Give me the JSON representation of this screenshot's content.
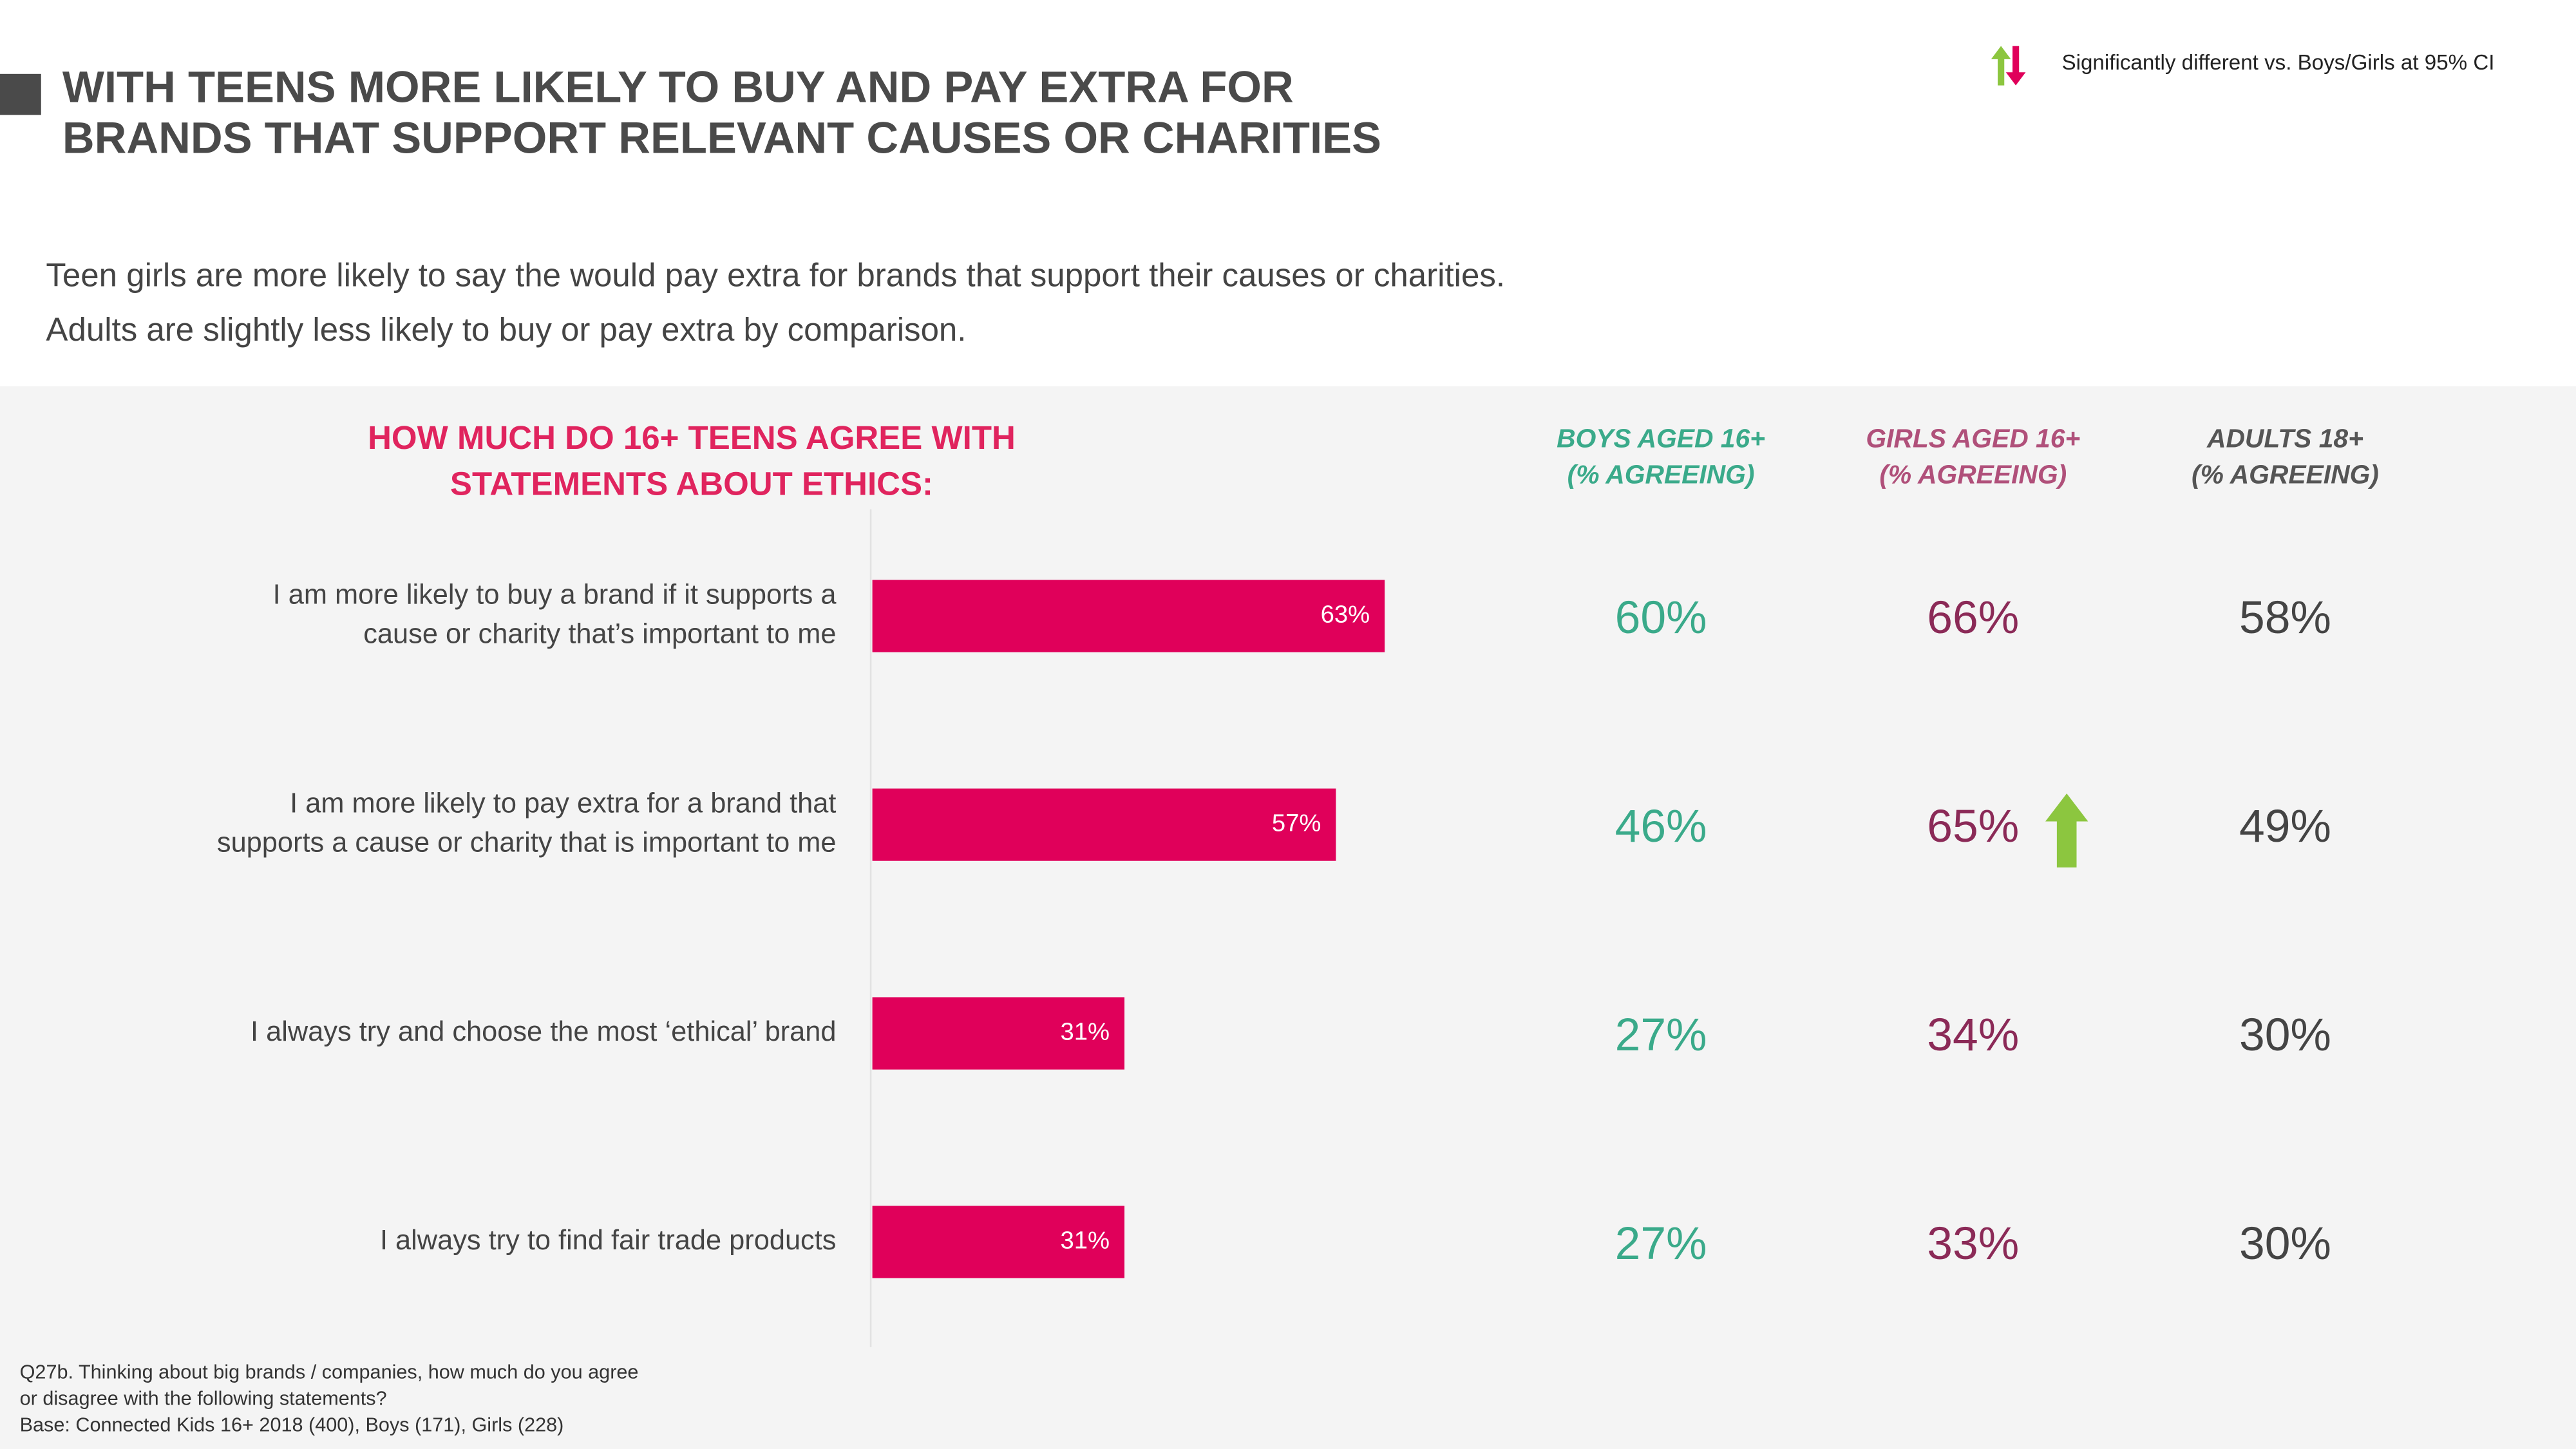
{
  "chart_data": {
    "type": "bar",
    "title": [
      "WITH TEENS MORE LIKELY TO BUY AND PAY EXTRA FOR",
      "BRANDS THAT SUPPORT RELEVANT CAUSES OR CHARITIES"
    ],
    "subtitle": [
      "Teen girls are more likely to say the would pay extra for brands that support their causes or charities.",
      "Adults are slightly less likely to buy or pay extra by comparison."
    ],
    "legend_note": "Significantly different vs. Boys/Girls at 95% CI",
    "question": [
      "HOW MUCH DO 16+ TEENS AGREE WITH",
      "STATEMENTS ABOUT ETHICS:"
    ],
    "categories": [
      [
        "I am more likely to buy a brand if it supports a",
        "cause or charity that’s important to me"
      ],
      [
        "I am more likely to pay extra for a brand that",
        "supports a cause or charity that is important to me"
      ],
      [
        "I always try and choose the most ‘ethical’ brand"
      ],
      [
        "I always try to find fair trade products"
      ]
    ],
    "values": [
      63,
      57,
      31,
      31
    ],
    "value_labels": [
      "63%",
      "57%",
      "31%",
      "31%"
    ],
    "color": "#e0005a",
    "xlim": [
      0,
      100
    ],
    "table": [
      {
        "header": [
          "BOYS AGED 16+",
          "(% AGREEING)"
        ],
        "color": "#3aaa8a",
        "values": [
          "60%",
          "46%",
          "27%",
          "27%"
        ]
      },
      {
        "header": [
          "GIRLS AGED 16+",
          "(% AGREEING)"
        ],
        "color": "#8b2a57",
        "header_color": "#b0507a",
        "values": [
          "66%",
          "65%",
          "34%",
          "33%"
        ],
        "significant_up": [
          false,
          true,
          false,
          false
        ]
      },
      {
        "header": [
          "ADULTS 18+",
          "(% AGREEING)"
        ],
        "color": "#444444",
        "header_color": "#555555",
        "values": [
          "58%",
          "49%",
          "30%",
          "30%"
        ]
      }
    ],
    "footnote": [
      "Q27b. Thinking about big brands / companies, how much do you agree",
      "or disagree with the following statements?",
      "Base: Connected Kids 16+ 2018 (400), Boys (171), Girls (228)"
    ]
  }
}
